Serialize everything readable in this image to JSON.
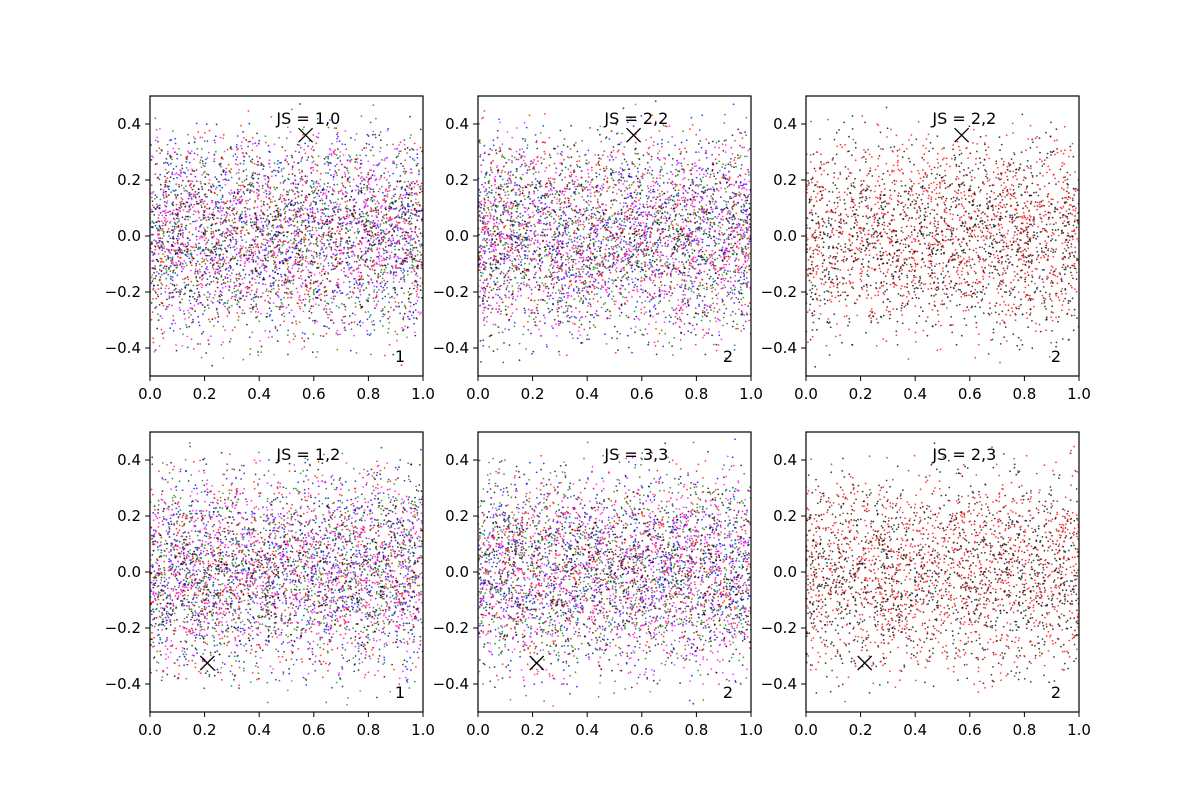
{
  "chart_data": [
    {
      "type": "scatter",
      "title": "JS = 1,0",
      "corner_label": "1",
      "xlim": [
        0.0,
        1.0
      ],
      "ylim": [
        -0.5,
        0.5
      ],
      "xticks": [
        "0.0",
        "0.2",
        "0.4",
        "0.6",
        "0.8",
        "1.0"
      ],
      "yticks": [
        "-0.4",
        "-0.2",
        "0.0",
        "0.2",
        "0.4"
      ],
      "marker": {
        "x": 0.57,
        "y": 0.36
      },
      "point_colors": [
        "#0000ff",
        "#008000",
        "#ff0000",
        "#ff00ff",
        "#000000"
      ],
      "approx_points_per_color": 900,
      "grid": false
    },
    {
      "type": "scatter",
      "title": "JS = 2,2",
      "corner_label": "2",
      "xlim": [
        0.0,
        1.0
      ],
      "ylim": [
        -0.5,
        0.5
      ],
      "xticks": [
        "0.0",
        "0.2",
        "0.4",
        "0.6",
        "0.8",
        "1.0"
      ],
      "yticks": [
        "-0.4",
        "-0.2",
        "0.0",
        "0.2",
        "0.4"
      ],
      "marker": {
        "x": 0.57,
        "y": 0.36
      },
      "point_colors": [
        "#0000ff",
        "#008000",
        "#ff0000",
        "#ff00ff",
        "#000000"
      ],
      "approx_points_per_color": 900,
      "grid": false
    },
    {
      "type": "scatter",
      "title": "JS = 2,2",
      "corner_label": "2",
      "xlim": [
        0.0,
        1.0
      ],
      "ylim": [
        -0.5,
        0.5
      ],
      "xticks": [
        "0.0",
        "0.2",
        "0.4",
        "0.6",
        "0.8",
        "1.0"
      ],
      "yticks": [
        "-0.4",
        "-0.2",
        "0.0",
        "0.2",
        "0.4"
      ],
      "marker": {
        "x": 0.57,
        "y": 0.36
      },
      "point_colors": [
        "#ff0000",
        "#000000"
      ],
      "approx_points_per_color": 1400,
      "grid": false
    },
    {
      "type": "scatter",
      "title": "JS = 1,2",
      "corner_label": "1",
      "xlim": [
        0.0,
        1.0
      ],
      "ylim": [
        -0.5,
        0.5
      ],
      "xticks": [
        "0.0",
        "0.2",
        "0.4",
        "0.6",
        "0.8",
        "1.0"
      ],
      "yticks": [
        "-0.4",
        "-0.2",
        "0.0",
        "0.2",
        "0.4"
      ],
      "marker": {
        "x": 0.21,
        "y": -0.325
      },
      "point_colors": [
        "#0000ff",
        "#008000",
        "#ff0000",
        "#ff00ff",
        "#000000"
      ],
      "approx_points_per_color": 900,
      "grid": false
    },
    {
      "type": "scatter",
      "title": "JS = 3,3",
      "corner_label": "2",
      "xlim": [
        0.0,
        1.0
      ],
      "ylim": [
        -0.5,
        0.5
      ],
      "xticks": [
        "0.0",
        "0.2",
        "0.4",
        "0.6",
        "0.8",
        "1.0"
      ],
      "yticks": [
        "-0.4",
        "-0.2",
        "0.0",
        "0.2",
        "0.4"
      ],
      "marker": {
        "x": 0.215,
        "y": -0.325
      },
      "point_colors": [
        "#0000ff",
        "#008000",
        "#ff0000",
        "#ff00ff",
        "#000000"
      ],
      "approx_points_per_color": 900,
      "grid": false
    },
    {
      "type": "scatter",
      "title": "JS = 2,3",
      "corner_label": "2",
      "xlim": [
        0.0,
        1.0
      ],
      "ylim": [
        -0.5,
        0.5
      ],
      "xticks": [
        "0.0",
        "0.2",
        "0.4",
        "0.6",
        "0.8",
        "1.0"
      ],
      "yticks": [
        "-0.4",
        "-0.2",
        "0.0",
        "0.2",
        "0.4"
      ],
      "marker": {
        "x": 0.215,
        "y": -0.325
      },
      "point_colors": [
        "#ff0000",
        "#000000"
      ],
      "approx_points_per_color": 1400,
      "grid": false
    }
  ]
}
